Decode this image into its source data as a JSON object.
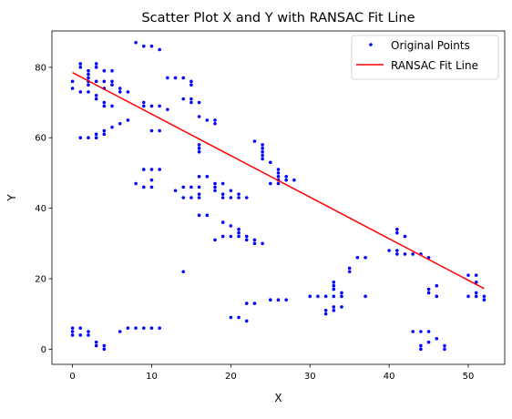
{
  "chart_data": {
    "type": "scatter",
    "title": "Scatter Plot X and Y with RANSAC Fit Line",
    "xlabel": "X",
    "ylabel": "Y",
    "xlim": [
      -2.6,
      54.6
    ],
    "ylim": [
      -4.3,
      90.3
    ],
    "xticks": [
      0,
      10,
      20,
      30,
      40,
      50
    ],
    "yticks": [
      0,
      20,
      40,
      60,
      80
    ],
    "grid": false,
    "legend_position": "top-right",
    "series": [
      {
        "name": "Original Points",
        "kind": "points",
        "color": "#0000ff",
        "points": [
          [
            0,
            76
          ],
          [
            0,
            74
          ],
          [
            0,
            6
          ],
          [
            0,
            5
          ],
          [
            0,
            4
          ],
          [
            1,
            81
          ],
          [
            1,
            80
          ],
          [
            1,
            73
          ],
          [
            1,
            60
          ],
          [
            1,
            6
          ],
          [
            1,
            4
          ],
          [
            2,
            79
          ],
          [
            2,
            78
          ],
          [
            2,
            77
          ],
          [
            2,
            76
          ],
          [
            2,
            75
          ],
          [
            2,
            73
          ],
          [
            2,
            60
          ],
          [
            2,
            5
          ],
          [
            2,
            4
          ],
          [
            3,
            81
          ],
          [
            3,
            80
          ],
          [
            3,
            76
          ],
          [
            3,
            72
          ],
          [
            3,
            71
          ],
          [
            3,
            61
          ],
          [
            3,
            60
          ],
          [
            3,
            2
          ],
          [
            3,
            1
          ],
          [
            4,
            79
          ],
          [
            4,
            76
          ],
          [
            4,
            74
          ],
          [
            4,
            70
          ],
          [
            4,
            69
          ],
          [
            4,
            62
          ],
          [
            4,
            61
          ],
          [
            4,
            1
          ],
          [
            4,
            0
          ],
          [
            5,
            79
          ],
          [
            5,
            76
          ],
          [
            5,
            75
          ],
          [
            5,
            69
          ],
          [
            5,
            63
          ],
          [
            6,
            74
          ],
          [
            6,
            73
          ],
          [
            6,
            64
          ],
          [
            6,
            5
          ],
          [
            7,
            73
          ],
          [
            7,
            65
          ],
          [
            7,
            6
          ],
          [
            8,
            87
          ],
          [
            8,
            47
          ],
          [
            8,
            6
          ],
          [
            9,
            86
          ],
          [
            9,
            70
          ],
          [
            9,
            69
          ],
          [
            9,
            51
          ],
          [
            9,
            46
          ],
          [
            9,
            6
          ],
          [
            10,
            86
          ],
          [
            10,
            69
          ],
          [
            10,
            62
          ],
          [
            10,
            51
          ],
          [
            10,
            48
          ],
          [
            10,
            46
          ],
          [
            10,
            6
          ],
          [
            11,
            85
          ],
          [
            11,
            69
          ],
          [
            11,
            62
          ],
          [
            11,
            51
          ],
          [
            11,
            6
          ],
          [
            12,
            77
          ],
          [
            12,
            68
          ],
          [
            13,
            77
          ],
          [
            13,
            45
          ],
          [
            14,
            77
          ],
          [
            14,
            71
          ],
          [
            14,
            46
          ],
          [
            14,
            43
          ],
          [
            14,
            22
          ],
          [
            15,
            76
          ],
          [
            15,
            75
          ],
          [
            15,
            71
          ],
          [
            15,
            70
          ],
          [
            15,
            46
          ],
          [
            15,
            43
          ],
          [
            16,
            70
          ],
          [
            16,
            66
          ],
          [
            16,
            58
          ],
          [
            16,
            57
          ],
          [
            16,
            56
          ],
          [
            16,
            49
          ],
          [
            16,
            46
          ],
          [
            16,
            44
          ],
          [
            16,
            43
          ],
          [
            16,
            38
          ],
          [
            17,
            65
          ],
          [
            17,
            49
          ],
          [
            17,
            38
          ],
          [
            18,
            65
          ],
          [
            18,
            64
          ],
          [
            18,
            47
          ],
          [
            18,
            46
          ],
          [
            18,
            45
          ],
          [
            18,
            31
          ],
          [
            19,
            47
          ],
          [
            19,
            44
          ],
          [
            19,
            43
          ],
          [
            19,
            36
          ],
          [
            19,
            32
          ],
          [
            20,
            45
          ],
          [
            20,
            43
          ],
          [
            20,
            35
          ],
          [
            20,
            32
          ],
          [
            20,
            9
          ],
          [
            21,
            44
          ],
          [
            21,
            43
          ],
          [
            21,
            34
          ],
          [
            21,
            33
          ],
          [
            21,
            32
          ],
          [
            21,
            9
          ],
          [
            22,
            43
          ],
          [
            22,
            32
          ],
          [
            22,
            31
          ],
          [
            22,
            13
          ],
          [
            22,
            8
          ],
          [
            23,
            59
          ],
          [
            23,
            31
          ],
          [
            23,
            30
          ],
          [
            23,
            13
          ],
          [
            24,
            58
          ],
          [
            24,
            57
          ],
          [
            24,
            56
          ],
          [
            24,
            55
          ],
          [
            24,
            54
          ],
          [
            24,
            30
          ],
          [
            25,
            53
          ],
          [
            25,
            47
          ],
          [
            25,
            14
          ],
          [
            26,
            51
          ],
          [
            26,
            50
          ],
          [
            26,
            49
          ],
          [
            26,
            48
          ],
          [
            26,
            47
          ],
          [
            26,
            14
          ],
          [
            27,
            49
          ],
          [
            27,
            48
          ],
          [
            27,
            14
          ],
          [
            28,
            48
          ],
          [
            30,
            15
          ],
          [
            31,
            15
          ],
          [
            32,
            15
          ],
          [
            32,
            11
          ],
          [
            32,
            10
          ],
          [
            33,
            19
          ],
          [
            33,
            18
          ],
          [
            33,
            17
          ],
          [
            33,
            15
          ],
          [
            33,
            12
          ],
          [
            33,
            11
          ],
          [
            34,
            16
          ],
          [
            34,
            15
          ],
          [
            34,
            12
          ],
          [
            35,
            23
          ],
          [
            35,
            22
          ],
          [
            36,
            26
          ],
          [
            37,
            26
          ],
          [
            37,
            15
          ],
          [
            40,
            28
          ],
          [
            41,
            34
          ],
          [
            41,
            33
          ],
          [
            41,
            28
          ],
          [
            41,
            27
          ],
          [
            42,
            32
          ],
          [
            42,
            27
          ],
          [
            43,
            27
          ],
          [
            43,
            5
          ],
          [
            44,
            27
          ],
          [
            44,
            5
          ],
          [
            44,
            1
          ],
          [
            44,
            0
          ],
          [
            45,
            26
          ],
          [
            45,
            17
          ],
          [
            45,
            16
          ],
          [
            45,
            5
          ],
          [
            45,
            2
          ],
          [
            46,
            18
          ],
          [
            46,
            15
          ],
          [
            46,
            3
          ],
          [
            47,
            1
          ],
          [
            47,
            0
          ],
          [
            50,
            21
          ],
          [
            50,
            15
          ],
          [
            51,
            21
          ],
          [
            51,
            19
          ],
          [
            51,
            16
          ],
          [
            51,
            15
          ],
          [
            52,
            15
          ],
          [
            52,
            14
          ]
        ]
      },
      {
        "name": "RANSAC Fit Line",
        "kind": "line",
        "color": "#ff0000",
        "x": [
          0,
          52
        ],
        "y": [
          78.5,
          17.2
        ]
      }
    ]
  }
}
